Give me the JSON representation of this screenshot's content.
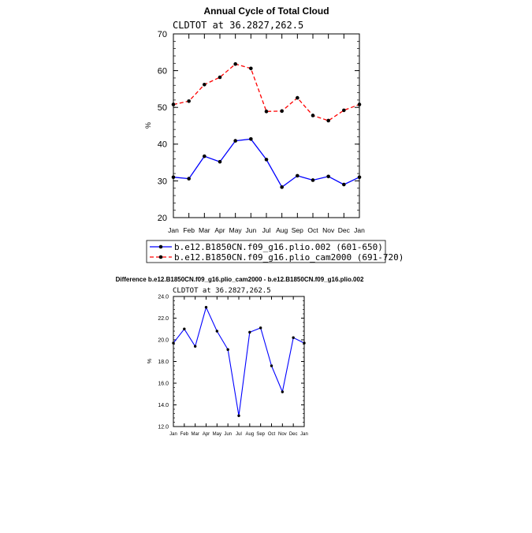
{
  "chart_data": [
    {
      "type": "line",
      "title": "Annual Cycle of Total Cloud",
      "subtitle": "CLDTOT at 36.2827,262.5",
      "ylabel": "%",
      "xlabel": "",
      "categories": [
        "Jan",
        "Feb",
        "Mar",
        "Apr",
        "May",
        "Jun",
        "Jul",
        "Aug",
        "Sep",
        "Oct",
        "Nov",
        "Dec",
        "Jan"
      ],
      "ylim": [
        20,
        70
      ],
      "yticks": [
        20,
        30,
        40,
        50,
        60,
        70
      ],
      "ytick_labels": [
        "20",
        "30",
        "40",
        "50",
        "60",
        "70"
      ],
      "grid": false,
      "legend_position": "bottom",
      "series": [
        {
          "name": "b.e12.B1850CN.f09_g16.plio.002 (601-650)",
          "color": "#0000ff",
          "dash": "solid",
          "values": [
            31.0,
            30.6,
            36.7,
            35.2,
            40.9,
            41.4,
            35.8,
            28.3,
            31.4,
            30.2,
            31.2,
            29.0,
            31.0
          ]
        },
        {
          "name": "b.e12.B1850CN.f09_g16.plio_cam2000 (691-720)",
          "color": "#ff0000",
          "dash": "dashed",
          "values": [
            50.8,
            51.7,
            56.2,
            58.2,
            61.8,
            60.6,
            48.9,
            49.0,
            52.6,
            47.8,
            46.4,
            49.2,
            50.8
          ]
        }
      ]
    },
    {
      "type": "line",
      "title": "Difference b.e12.B1850CN.f09_g16.plio_cam2000 - b.e12.B1850CN.f09_g16.plio.002",
      "subtitle": "CLDTOT at 36.2827,262.5",
      "ylabel": "%",
      "xlabel": "",
      "categories": [
        "Jan",
        "Feb",
        "Mar",
        "Apr",
        "May",
        "Jun",
        "Jul",
        "Aug",
        "Sep",
        "Oct",
        "Nov",
        "Dec",
        "Jan"
      ],
      "ylim": [
        12,
        24
      ],
      "yticks": [
        12,
        14,
        16,
        18,
        20,
        22,
        24
      ],
      "ytick_labels": [
        "12.0",
        "14.0",
        "16.0",
        "18.0",
        "20.0",
        "22.0",
        "24.0"
      ],
      "grid": false,
      "series": [
        {
          "color": "#0000ff",
          "dash": "solid",
          "values": [
            19.7,
            21.0,
            19.4,
            23.0,
            20.8,
            19.1,
            13.0,
            20.7,
            21.1,
            17.6,
            15.2,
            20.2,
            19.7
          ]
        }
      ]
    }
  ]
}
